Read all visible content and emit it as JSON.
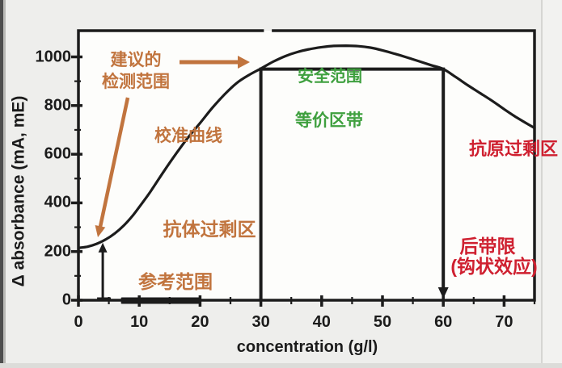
{
  "page": {
    "background": "#eeeeec"
  },
  "colors": {
    "orange": "#c1743e",
    "green": "#3fa03f",
    "red": "#cf2030",
    "curve": "#1c1c1c",
    "plot_bg": "#fdfdfb",
    "page_bg": "#eeeeec"
  },
  "labels": {
    "recommended_range_line1": "建议的",
    "recommended_range_line2": "检测范围",
    "calibration_curve": "校准曲线",
    "safe_range": "安全范围",
    "equivalence_zone": "等价区带",
    "antibody_excess": "抗体过剩区",
    "reference_range": "参考范围",
    "antigen_excess": "抗原过剩区",
    "hook_limit_line1": "后带限",
    "hook_limit_line2": "(钩状效应)"
  },
  "chart_data": {
    "type": "line",
    "title": "",
    "xlabel": "concentration (g/l)",
    "ylabel": "Δ absorbance (mA, mE)",
    "xlim": [
      0,
      75
    ],
    "ylim": [
      0,
      1108
    ],
    "grid": false,
    "x_major_ticks": [
      0,
      10,
      20,
      30,
      40,
      50,
      60,
      70
    ],
    "x_minor_ticks": [
      5,
      15,
      25,
      35,
      45,
      55,
      65,
      75
    ],
    "y_major_ticks": [
      0,
      200,
      400,
      600,
      800,
      1000
    ],
    "y_minor_ticks": [
      100,
      300,
      500,
      700,
      900
    ],
    "series": [
      {
        "name": "calibration curve (校准曲线)",
        "points": [
          [
            0,
            215
          ],
          [
            1.5,
            220
          ],
          [
            3,
            232
          ],
          [
            4.5,
            250
          ],
          [
            6,
            275
          ],
          [
            7.5,
            308
          ],
          [
            9,
            350
          ],
          [
            10.5,
            400
          ],
          [
            12,
            452
          ],
          [
            14,
            528
          ],
          [
            16,
            600
          ],
          [
            18,
            668
          ],
          [
            20,
            728
          ],
          [
            22,
            790
          ],
          [
            24,
            845
          ],
          [
            26,
            892
          ],
          [
            28,
            925
          ],
          [
            30,
            952
          ],
          [
            32,
            980
          ],
          [
            34,
            1003
          ],
          [
            36,
            1020
          ],
          [
            38,
            1032
          ],
          [
            40,
            1040
          ],
          [
            42,
            1045
          ],
          [
            44,
            1046
          ],
          [
            46,
            1044
          ],
          [
            48,
            1038
          ],
          [
            50,
            1027
          ],
          [
            52,
            1013
          ],
          [
            54,
            998
          ],
          [
            56,
            982
          ],
          [
            58,
            966
          ],
          [
            60,
            950
          ],
          [
            62,
            918
          ],
          [
            64,
            884
          ],
          [
            66,
            852
          ],
          [
            68,
            820
          ],
          [
            70,
            785
          ],
          [
            72,
            752
          ],
          [
            74,
            722
          ],
          [
            75,
            708
          ]
        ]
      }
    ],
    "annotations": {
      "plateau_value": 950,
      "safe_range_x": [
        30,
        60
      ],
      "recommended_min_x": 30,
      "hook_limit_x": 60,
      "sample_indicator_x": 4,
      "sample_indicator_value": 243,
      "reference_range_x": [
        7,
        20
      ],
      "peak_point": [
        44,
        1046
      ],
      "curve_start_value": 215,
      "top_axis_break_x": [
        30.5,
        31.8
      ]
    }
  }
}
